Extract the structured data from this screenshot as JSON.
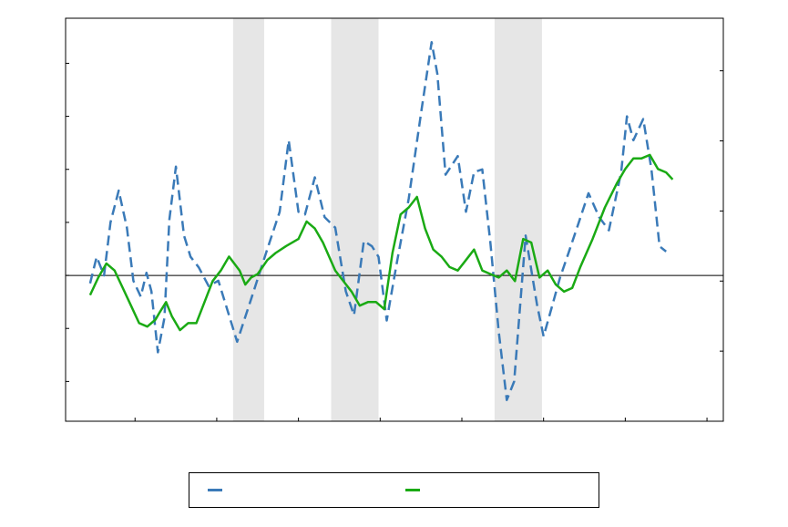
{
  "chart_data": {
    "type": "line",
    "title": "",
    "xlabel": "",
    "ylabel_left": "",
    "ylabel_right": "",
    "x_range": [
      -0.85,
      7.2
    ],
    "y_left_range": [
      -2.75,
      4.85
    ],
    "y_right_range": [
      -2.0,
      3.75
    ],
    "grid": false,
    "legend_placement": "bottom",
    "zero_line": true,
    "recession_bands": [
      [
        1.2,
        1.58
      ],
      [
        2.4,
        2.98
      ],
      [
        4.4,
        4.98
      ]
    ],
    "series": [
      {
        "axis": "left",
        "color": "#3a7ab8",
        "style": "dashed",
        "values": [
          [
            -0.55,
            -0.15
          ],
          [
            -0.47,
            0.35
          ],
          [
            -0.38,
            0.0
          ],
          [
            -0.3,
            1.0
          ],
          [
            -0.2,
            1.6
          ],
          [
            -0.1,
            0.9
          ],
          [
            -0.02,
            -0.1
          ],
          [
            0.07,
            -0.4
          ],
          [
            0.14,
            0.05
          ],
          [
            0.2,
            -0.3
          ],
          [
            0.28,
            -1.45
          ],
          [
            0.36,
            -0.8
          ],
          [
            0.42,
            1.05
          ],
          [
            0.5,
            2.05
          ],
          [
            0.6,
            0.75
          ],
          [
            0.68,
            0.35
          ],
          [
            0.78,
            0.15
          ],
          [
            0.9,
            -0.2
          ],
          [
            1.02,
            -0.1
          ],
          [
            1.12,
            -0.6
          ],
          [
            1.25,
            -1.25
          ],
          [
            1.42,
            -0.45
          ],
          [
            1.62,
            0.5
          ],
          [
            1.77,
            1.2
          ],
          [
            1.88,
            2.55
          ],
          [
            2.0,
            1.2
          ],
          [
            2.08,
            1.15
          ],
          [
            2.2,
            1.85
          ],
          [
            2.32,
            1.1
          ],
          [
            2.45,
            0.9
          ],
          [
            2.58,
            -0.3
          ],
          [
            2.68,
            -0.75
          ],
          [
            2.8,
            0.65
          ],
          [
            2.9,
            0.55
          ],
          [
            2.98,
            0.35
          ],
          [
            3.08,
            -0.85
          ],
          [
            3.2,
            0.2
          ],
          [
            3.35,
            1.45
          ],
          [
            3.5,
            3.05
          ],
          [
            3.63,
            4.4
          ],
          [
            3.7,
            3.8
          ],
          [
            3.8,
            1.9
          ],
          [
            3.95,
            2.25
          ],
          [
            4.05,
            1.2
          ],
          [
            4.15,
            1.95
          ],
          [
            4.25,
            2.0
          ],
          [
            4.35,
            0.6
          ],
          [
            4.45,
            -1.05
          ],
          [
            4.55,
            -2.35
          ],
          [
            4.64,
            -2.0
          ],
          [
            4.78,
            0.75
          ],
          [
            4.92,
            -0.55
          ],
          [
            5.0,
            -1.15
          ],
          [
            5.1,
            -0.6
          ],
          [
            5.2,
            -0.05
          ],
          [
            5.3,
            0.4
          ],
          [
            5.42,
            0.95
          ],
          [
            5.55,
            1.55
          ],
          [
            5.68,
            1.1
          ],
          [
            5.8,
            0.85
          ],
          [
            5.95,
            1.95
          ],
          [
            6.02,
            3.0
          ],
          [
            6.1,
            2.55
          ],
          [
            6.22,
            2.95
          ],
          [
            6.32,
            2.0
          ],
          [
            6.42,
            0.55
          ],
          [
            6.5,
            0.45
          ]
        ]
      },
      {
        "axis": "right",
        "color": "#1aaa14",
        "style": "solid",
        "values": [
          [
            -0.55,
            -0.2
          ],
          [
            -0.45,
            0.05
          ],
          [
            -0.35,
            0.25
          ],
          [
            -0.25,
            0.15
          ],
          [
            -0.15,
            -0.1
          ],
          [
            -0.05,
            -0.35
          ],
          [
            0.05,
            -0.6
          ],
          [
            0.15,
            -0.65
          ],
          [
            0.25,
            -0.55
          ],
          [
            0.3,
            -0.45
          ],
          [
            0.38,
            -0.3
          ],
          [
            0.45,
            -0.5
          ],
          [
            0.55,
            -0.7
          ],
          [
            0.65,
            -0.6
          ],
          [
            0.75,
            -0.6
          ],
          [
            0.85,
            -0.3
          ],
          [
            0.95,
            0.0
          ],
          [
            1.05,
            0.15
          ],
          [
            1.15,
            0.35
          ],
          [
            1.28,
            0.15
          ],
          [
            1.35,
            -0.05
          ],
          [
            1.42,
            0.05
          ],
          [
            1.5,
            0.1
          ],
          [
            1.62,
            0.3
          ],
          [
            1.72,
            0.4
          ],
          [
            1.85,
            0.5
          ],
          [
            2.0,
            0.6
          ],
          [
            2.1,
            0.85
          ],
          [
            2.2,
            0.75
          ],
          [
            2.3,
            0.55
          ],
          [
            2.45,
            0.15
          ],
          [
            2.55,
            0.0
          ],
          [
            2.65,
            -0.15
          ],
          [
            2.75,
            -0.35
          ],
          [
            2.85,
            -0.3
          ],
          [
            2.95,
            -0.3
          ],
          [
            3.05,
            -0.4
          ],
          [
            3.15,
            0.4
          ],
          [
            3.25,
            0.95
          ],
          [
            3.35,
            1.05
          ],
          [
            3.45,
            1.2
          ],
          [
            3.55,
            0.75
          ],
          [
            3.65,
            0.45
          ],
          [
            3.75,
            0.35
          ],
          [
            3.85,
            0.2
          ],
          [
            3.95,
            0.15
          ],
          [
            4.05,
            0.3
          ],
          [
            4.15,
            0.45
          ],
          [
            4.25,
            0.15
          ],
          [
            4.35,
            0.1
          ],
          [
            4.45,
            0.05
          ],
          [
            4.55,
            0.15
          ],
          [
            4.65,
            0.0
          ],
          [
            4.75,
            0.6
          ],
          [
            4.85,
            0.55
          ],
          [
            4.95,
            0.05
          ],
          [
            5.05,
            0.15
          ],
          [
            5.15,
            -0.05
          ],
          [
            5.25,
            -0.15
          ],
          [
            5.35,
            -0.1
          ],
          [
            5.45,
            0.2
          ],
          [
            5.6,
            0.6
          ],
          [
            5.75,
            1.05
          ],
          [
            5.9,
            1.4
          ],
          [
            6.0,
            1.6
          ],
          [
            6.1,
            1.75
          ],
          [
            6.2,
            1.75
          ],
          [
            6.3,
            1.8
          ],
          [
            6.4,
            1.6
          ],
          [
            6.5,
            1.55
          ],
          [
            6.58,
            1.45
          ]
        ]
      }
    ]
  },
  "legend": {
    "items": [
      {
        "label": "",
        "color": "#3a7ab8"
      },
      {
        "label": "",
        "color": "#1aaa14"
      }
    ]
  }
}
